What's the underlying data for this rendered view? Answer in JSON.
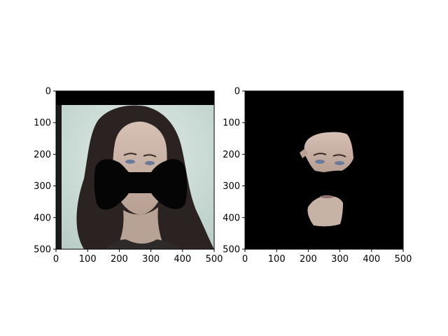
{
  "figure": {
    "background": "#ffffff"
  },
  "chart_data": [
    {
      "type": "image",
      "title": "",
      "xlabel": "",
      "ylabel": "",
      "xlim": [
        0,
        500
      ],
      "ylim": [
        500,
        0
      ],
      "xticks": [
        0,
        100,
        200,
        300,
        400,
        500
      ],
      "yticks": [
        0,
        100,
        200,
        300,
        400,
        500
      ],
      "xtick_labels": [
        "0",
        "100",
        "200",
        "300",
        "400",
        "500"
      ],
      "ytick_labels": [
        "0",
        "100",
        "200",
        "300",
        "400",
        "500"
      ],
      "grid": false,
      "image_content": "photo of a woman's face with a black bow-tie-shaped mask over the lower face; black band along the top edge",
      "colors": {
        "mask": "#050505",
        "background_wall": "#cfe0da",
        "hair": "#2a2220",
        "skin": "#c9b2a6"
      }
    },
    {
      "type": "image",
      "title": "",
      "xlabel": "",
      "ylabel": "",
      "xlim": [
        0,
        500
      ],
      "ylim": [
        500,
        0
      ],
      "xticks": [
        0,
        100,
        200,
        300,
        400,
        500
      ],
      "yticks": [
        0,
        100,
        200,
        300,
        400,
        500
      ],
      "xtick_labels": [
        "0",
        "100",
        "200",
        "300",
        "400",
        "500"
      ],
      "ytick_labels": [
        "0",
        "100",
        "200",
        "300",
        "400",
        "500"
      ],
      "grid": false,
      "image_content": "black image with only the segmented skin regions of the face (forehead/eyes area and chin area) visible",
      "colors": {
        "background": "#000000",
        "skin": "#c9b2a6"
      }
    }
  ]
}
